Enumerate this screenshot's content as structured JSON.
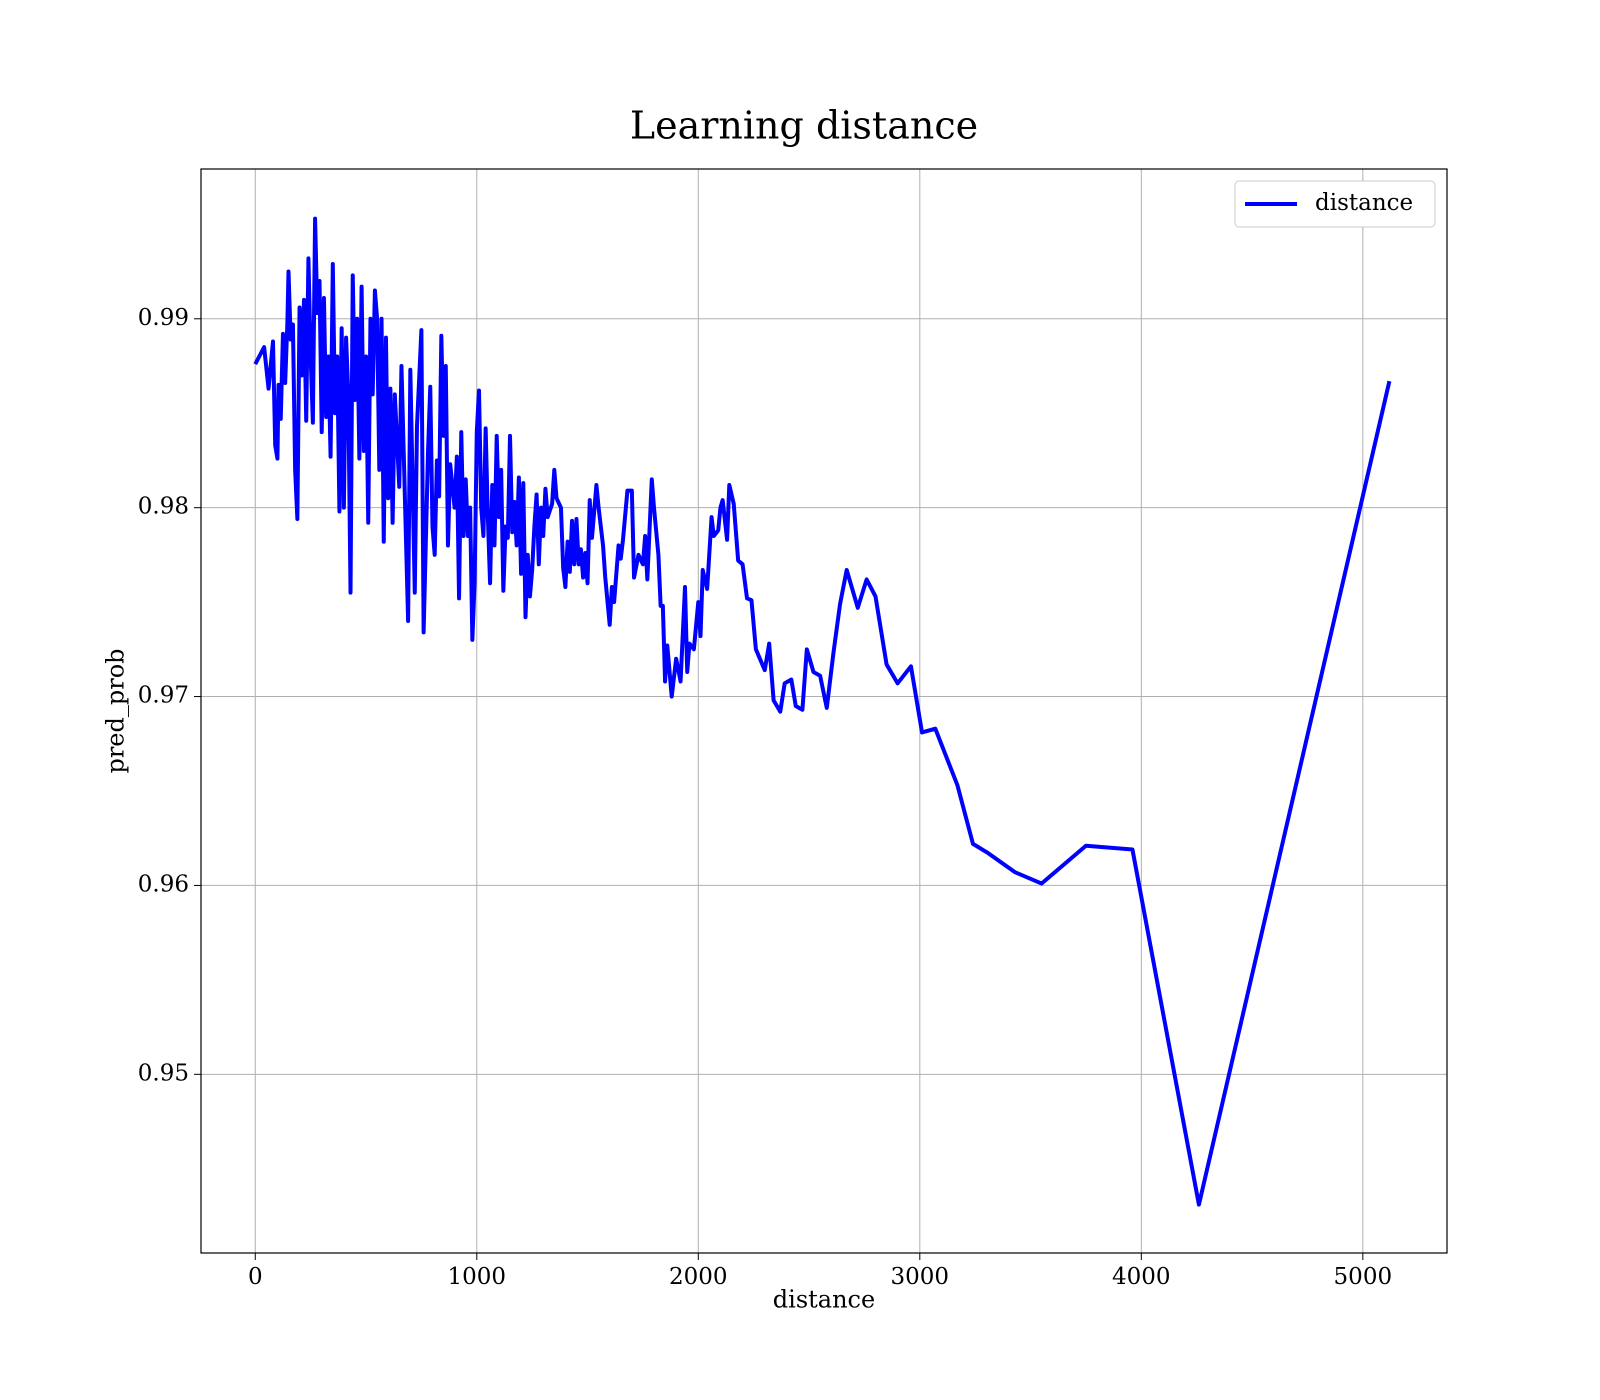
{
  "chart_data": {
    "type": "line",
    "title": "Learning distance",
    "x_label": "distance",
    "y_label": "pred_prob",
    "xlim": [
      -245,
      5380
    ],
    "ylim": [
      0.94054,
      0.99793
    ],
    "xticks": [
      0,
      1000,
      2000,
      3000,
      4000,
      5000
    ],
    "yticks": [
      0.95,
      0.96,
      0.97,
      0.98,
      0.99
    ],
    "grid": true,
    "legend": "upper right",
    "x": [
      0,
      40,
      60,
      80,
      90,
      100,
      105,
      115,
      125,
      135,
      145,
      150,
      160,
      170,
      180,
      190,
      200,
      210,
      220,
      230,
      240,
      250,
      260,
      270,
      280,
      290,
      300,
      310,
      320,
      330,
      340,
      350,
      360,
      370,
      380,
      390,
      400,
      410,
      420,
      430,
      440,
      450,
      460,
      470,
      480,
      490,
      500,
      510,
      520,
      530,
      540,
      550,
      560,
      570,
      580,
      590,
      600,
      610,
      620,
      630,
      650,
      660,
      670,
      690,
      700,
      710,
      720,
      730,
      750,
      760,
      780,
      790,
      800,
      810,
      820,
      830,
      840,
      850,
      860,
      870,
      880,
      900,
      910,
      920,
      930,
      940,
      950,
      960,
      970,
      980,
      990,
      1000,
      1010,
      1020,
      1030,
      1040,
      1050,
      1060,
      1070,
      1080,
      1090,
      1100,
      1110,
      1120,
      1130,
      1140,
      1150,
      1160,
      1170,
      1180,
      1190,
      1200,
      1210,
      1220,
      1230,
      1240,
      1250,
      1260,
      1270,
      1280,
      1290,
      1300,
      1310,
      1320,
      1340,
      1350,
      1360,
      1380,
      1390,
      1400,
      1410,
      1420,
      1430,
      1440,
      1450,
      1460,
      1470,
      1480,
      1490,
      1500,
      1510,
      1520,
      1540,
      1550,
      1570,
      1580,
      1600,
      1610,
      1620,
      1640,
      1650,
      1660,
      1680,
      1700,
      1710,
      1730,
      1750,
      1760,
      1770,
      1790,
      1800,
      1820,
      1830,
      1840,
      1850,
      1860,
      1880,
      1900,
      1920,
      1940,
      1950,
      1960,
      1980,
      2000,
      2010,
      2020,
      2040,
      2060,
      2070,
      2090,
      2100,
      2110,
      2130,
      2140,
      2160,
      2180,
      2200,
      2220,
      2240,
      2260,
      2300,
      2320,
      2340,
      2370,
      2390,
      2420,
      2440,
      2470,
      2490,
      2520,
      2550,
      2580,
      2610,
      2640,
      2670,
      2720,
      2760,
      2800,
      2850,
      2900,
      2960,
      3010,
      3070,
      3170,
      3240,
      3310,
      3430,
      3550,
      3750,
      3960,
      4260,
      5120
    ],
    "series": [
      {
        "name": "distance",
        "color": "#0000ff",
        "values": [
          0.9876,
          0.9885,
          0.9863,
          0.9888,
          0.9833,
          0.9826,
          0.9865,
          0.9847,
          0.9892,
          0.9866,
          0.9898,
          0.9925,
          0.9889,
          0.9897,
          0.982,
          0.9794,
          0.9906,
          0.987,
          0.991,
          0.9846,
          0.9932,
          0.988,
          0.9845,
          0.9953,
          0.9903,
          0.992,
          0.984,
          0.9911,
          0.9848,
          0.988,
          0.9827,
          0.9929,
          0.985,
          0.988,
          0.9798,
          0.9895,
          0.98,
          0.989,
          0.986,
          0.9755,
          0.9923,
          0.9857,
          0.99,
          0.9826,
          0.9917,
          0.983,
          0.988,
          0.9792,
          0.99,
          0.986,
          0.9915,
          0.99,
          0.982,
          0.99,
          0.9782,
          0.989,
          0.9805,
          0.9863,
          0.9792,
          0.986,
          0.9811,
          0.9875,
          0.983,
          0.974,
          0.9873,
          0.9815,
          0.9755,
          0.9843,
          0.9894,
          0.9734,
          0.983,
          0.9864,
          0.979,
          0.9775,
          0.9825,
          0.9806,
          0.9891,
          0.9838,
          0.9875,
          0.978,
          0.9823,
          0.98,
          0.9827,
          0.9752,
          0.984,
          0.9785,
          0.9815,
          0.9785,
          0.98,
          0.973,
          0.976,
          0.984,
          0.9862,
          0.98,
          0.9785,
          0.9842,
          0.9795,
          0.976,
          0.9812,
          0.978,
          0.9838,
          0.9795,
          0.982,
          0.9756,
          0.979,
          0.9784,
          0.9838,
          0.9787,
          0.9803,
          0.978,
          0.9816,
          0.9765,
          0.9813,
          0.9742,
          0.9775,
          0.9753,
          0.9767,
          0.979,
          0.9807,
          0.977,
          0.98,
          0.9785,
          0.981,
          0.9795,
          0.9802,
          0.982,
          0.9805,
          0.98,
          0.9768,
          0.9758,
          0.9782,
          0.9766,
          0.9793,
          0.977,
          0.9794,
          0.977,
          0.9778,
          0.9763,
          0.9776,
          0.976,
          0.9804,
          0.9784,
          0.9812,
          0.98,
          0.978,
          0.9763,
          0.9738,
          0.9758,
          0.975,
          0.978,
          0.9773,
          0.9783,
          0.9809,
          0.9809,
          0.9763,
          0.9775,
          0.977,
          0.9785,
          0.9762,
          0.9815,
          0.98,
          0.9775,
          0.9748,
          0.9748,
          0.9708,
          0.9727,
          0.97,
          0.972,
          0.9708,
          0.9758,
          0.9713,
          0.9728,
          0.9725,
          0.975,
          0.9732,
          0.9767,
          0.9757,
          0.9795,
          0.9785,
          0.9788,
          0.98,
          0.9804,
          0.9783,
          0.9812,
          0.9802,
          0.9772,
          0.977,
          0.9752,
          0.9751,
          0.9725,
          0.9714,
          0.9728,
          0.9698,
          0.9692,
          0.9707,
          0.9709,
          0.9695,
          0.9693,
          0.9725,
          0.9713,
          0.9711,
          0.9694,
          0.9723,
          0.9749,
          0.9767,
          0.9747,
          0.9762,
          0.9753,
          0.9717,
          0.9707,
          0.9716,
          0.9681,
          0.9683,
          0.9653,
          0.9622,
          0.9617,
          0.9607,
          0.9601,
          0.9621,
          0.9619,
          0.9431,
          0.9867
        ]
      }
    ]
  }
}
